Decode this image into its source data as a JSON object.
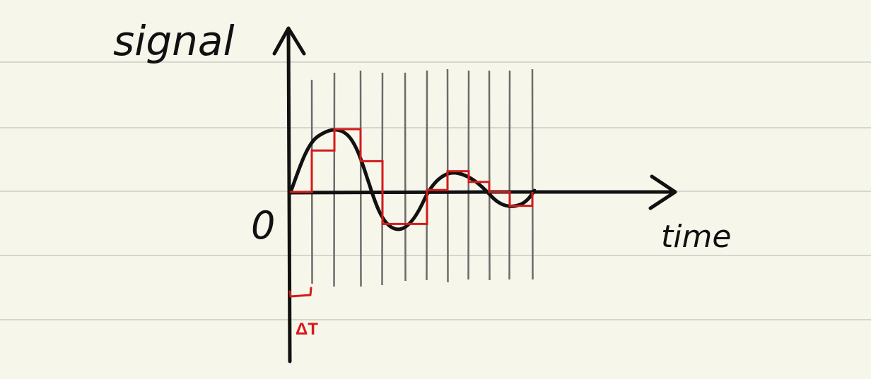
{
  "labels": {
    "y_axis": "signal",
    "x_axis": "time",
    "origin": "0",
    "step_label": "ΔT"
  },
  "colors": {
    "paper": "#f7f6ea",
    "ruled_line": "#d6d6d0",
    "ink": "#111111",
    "grid": "#6b6b6b",
    "sampled": "#d41a1a"
  },
  "sampling": {
    "interval_count": 11,
    "held_levels": [
      0.0,
      0.66,
      1.0,
      0.49,
      -0.51,
      -0.51,
      0.03,
      0.33,
      0.16,
      0.0,
      -0.22
    ]
  }
}
